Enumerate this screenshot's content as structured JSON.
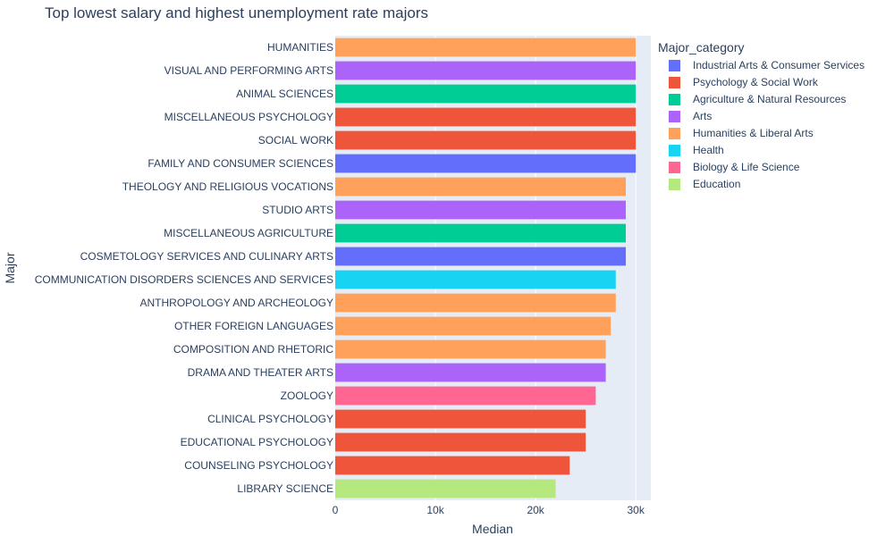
{
  "chart_data": {
    "type": "bar",
    "orientation": "horizontal",
    "title": "Top lowest salary and highest unemployment rate majors",
    "xlabel": "Median",
    "ylabel": "Major",
    "xlim": [
      0,
      31500
    ],
    "xticks": [
      0,
      10000,
      20000,
      30000
    ],
    "xtick_labels": [
      "0",
      "10k",
      "20k",
      "30k"
    ],
    "grid": true,
    "legend": {
      "title": "Major_category",
      "placement": "right",
      "entries": [
        {
          "name": "Industrial Arts & Consumer Services",
          "color": "#636efa"
        },
        {
          "name": "Psychology & Social Work",
          "color": "#ef553b"
        },
        {
          "name": "Agriculture & Natural Resources",
          "color": "#00cc96"
        },
        {
          "name": "Arts",
          "color": "#ab63fa"
        },
        {
          "name": "Humanities & Liberal Arts",
          "color": "#ffa15a"
        },
        {
          "name": "Health",
          "color": "#19d3f3"
        },
        {
          "name": "Biology & Life Science",
          "color": "#ff6692"
        },
        {
          "name": "Education",
          "color": "#b6e880"
        }
      ]
    },
    "bars": [
      {
        "major": "HUMANITIES",
        "category": "Humanities & Liberal Arts",
        "value": 30000
      },
      {
        "major": "VISUAL AND PERFORMING ARTS",
        "category": "Arts",
        "value": 30000
      },
      {
        "major": "ANIMAL SCIENCES",
        "category": "Agriculture & Natural Resources",
        "value": 30000
      },
      {
        "major": "MISCELLANEOUS PSYCHOLOGY",
        "category": "Psychology & Social Work",
        "value": 30000
      },
      {
        "major": "SOCIAL WORK",
        "category": "Psychology & Social Work",
        "value": 30000
      },
      {
        "major": "FAMILY AND CONSUMER SCIENCES",
        "category": "Industrial Arts & Consumer Services",
        "value": 30000
      },
      {
        "major": "THEOLOGY AND RELIGIOUS VOCATIONS",
        "category": "Humanities & Liberal Arts",
        "value": 29000
      },
      {
        "major": "STUDIO ARTS",
        "category": "Arts",
        "value": 29000
      },
      {
        "major": "MISCELLANEOUS AGRICULTURE",
        "category": "Agriculture & Natural Resources",
        "value": 29000
      },
      {
        "major": "COSMETOLOGY SERVICES AND CULINARY ARTS",
        "category": "Industrial Arts & Consumer Services",
        "value": 29000
      },
      {
        "major": "COMMUNICATION DISORDERS SCIENCES AND SERVICES",
        "category": "Health",
        "value": 28000
      },
      {
        "major": "ANTHROPOLOGY AND ARCHEOLOGY",
        "category": "Humanities & Liberal Arts",
        "value": 28000
      },
      {
        "major": "OTHER FOREIGN LANGUAGES",
        "category": "Humanities & Liberal Arts",
        "value": 27500
      },
      {
        "major": "COMPOSITION AND RHETORIC",
        "category": "Humanities & Liberal Arts",
        "value": 27000
      },
      {
        "major": "DRAMA AND THEATER ARTS",
        "category": "Arts",
        "value": 27000
      },
      {
        "major": "ZOOLOGY",
        "category": "Biology & Life Science",
        "value": 26000
      },
      {
        "major": "CLINICAL PSYCHOLOGY",
        "category": "Psychology & Social Work",
        "value": 25000
      },
      {
        "major": "EDUCATIONAL PSYCHOLOGY",
        "category": "Psychology & Social Work",
        "value": 25000
      },
      {
        "major": "COUNSELING PSYCHOLOGY",
        "category": "Psychology & Social Work",
        "value": 23400
      },
      {
        "major": "LIBRARY SCIENCE",
        "category": "Education",
        "value": 22000
      }
    ]
  }
}
